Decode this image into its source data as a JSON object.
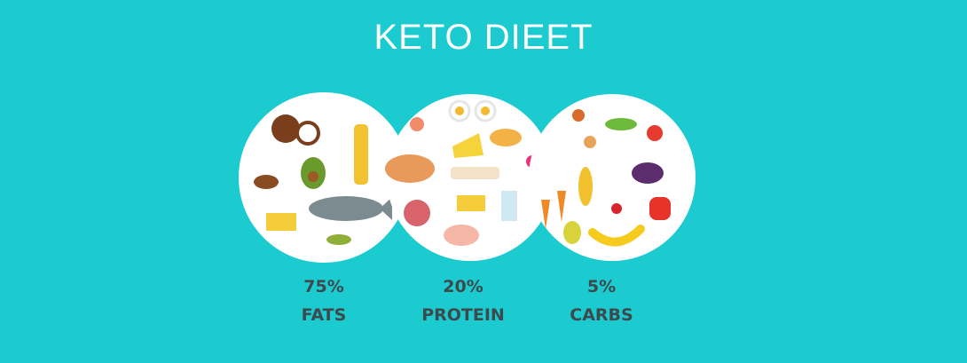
{
  "title": "KETO DIEET",
  "colors": {
    "background": "#1ccbcf",
    "plate": "#ffffff",
    "text": "#3d4a4d"
  },
  "groups": [
    {
      "percent": "75%",
      "name": "FATS",
      "illustration": "fats-foods"
    },
    {
      "percent": "20%",
      "name": "PROTEIN",
      "illustration": "protein-foods"
    },
    {
      "percent": "5%",
      "name": "CARBS",
      "illustration": "carb-vegetables-fruit"
    }
  ]
}
